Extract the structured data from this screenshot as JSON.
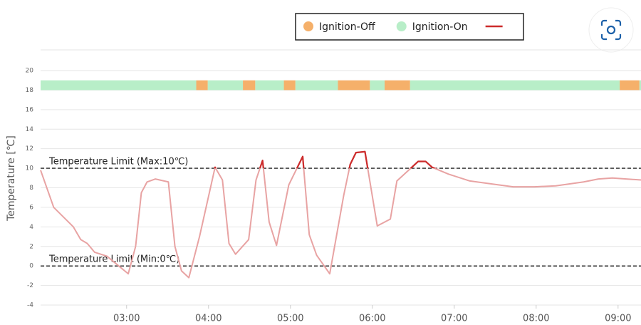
{
  "chart_data": {
    "type": "line",
    "ylabel": "Temperature [℃]",
    "xlim": [
      1.95,
      9.28
    ],
    "xticks": [
      {
        "value": 3,
        "label": "03:00"
      },
      {
        "value": 4,
        "label": "04:00"
      },
      {
        "value": 5,
        "label": "05:00"
      },
      {
        "value": 6,
        "label": "06:00"
      },
      {
        "value": 7,
        "label": "07:00"
      },
      {
        "value": 8,
        "label": "08:00"
      },
      {
        "value": 9,
        "label": "09:00"
      }
    ],
    "ylim": [
      -4,
      20
    ],
    "yticks": [
      -4,
      -2,
      0,
      2,
      4,
      6,
      8,
      10,
      12,
      14,
      16,
      18,
      20
    ],
    "grid": true,
    "x": [
      1.95,
      2.11,
      2.35,
      2.44,
      2.52,
      2.61,
      2.76,
      2.89,
      3.02,
      3.11,
      3.18,
      3.25,
      3.35,
      3.51,
      3.59,
      3.67,
      3.76,
      3.89,
      4.08,
      4.17,
      4.25,
      4.33,
      4.49,
      4.58,
      4.66,
      4.74,
      4.83,
      4.98,
      5.15,
      5.23,
      5.32,
      5.48,
      5.65,
      5.73,
      5.8,
      5.91,
      6.06,
      6.22,
      6.3,
      6.56,
      6.65,
      6.73,
      6.93,
      7.19,
      7.54,
      7.72,
      7.98,
      8.24,
      8.58,
      8.76,
      8.93,
      9.28
    ],
    "series": [
      {
        "color": "#cc2b2b",
        "normal_color": "#e8a3a3",
        "values": [
          9.8,
          6.0,
          4.0,
          2.7,
          2.3,
          1.4,
          1.0,
          0.1,
          -0.8,
          2.0,
          7.5,
          8.6,
          8.9,
          8.6,
          2.0,
          -0.5,
          -1.2,
          3.0,
          10.1,
          8.8,
          2.3,
          1.2,
          2.7,
          8.8,
          10.8,
          4.5,
          2.1,
          8.3,
          11.2,
          3.2,
          1.1,
          -0.8,
          7.2,
          10.4,
          11.6,
          11.7,
          4.1,
          4.8,
          8.7,
          10.7,
          10.7,
          10.1,
          9.4,
          8.7,
          8.3,
          8.1,
          8.1,
          8.2,
          8.6,
          8.9,
          9.0,
          8.8
        ]
      }
    ],
    "limits": [
      {
        "label": "Temperature Limit (Max:10℃)",
        "value": 10
      },
      {
        "label": "Temperature Limit (Min:0℃)",
        "value": 0
      }
    ],
    "band_ylim": [
      18,
      19
    ],
    "legend": [
      {
        "name": "Ignition-Off",
        "color": "#f5b06a"
      },
      {
        "name": "Ignition-On",
        "color": "#b8eec8"
      }
    ],
    "ignition_off": [
      [
        3.85,
        3.99
      ],
      [
        4.42,
        4.57
      ],
      [
        4.92,
        5.06
      ],
      [
        5.58,
        5.97
      ],
      [
        6.15,
        6.46
      ],
      [
        9.02,
        9.26
      ]
    ],
    "ignition_on": [
      [
        1.95,
        3.85
      ],
      [
        3.99,
        4.42
      ],
      [
        4.57,
        4.92
      ],
      [
        5.06,
        5.58
      ],
      [
        5.97,
        6.15
      ],
      [
        6.46,
        9.02
      ],
      [
        9.26,
        9.28
      ]
    ]
  }
}
